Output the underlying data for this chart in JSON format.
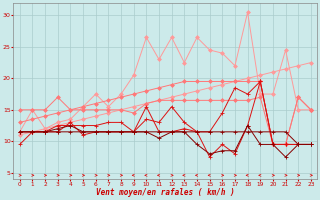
{
  "x": [
    0,
    1,
    2,
    3,
    4,
    5,
    6,
    7,
    8,
    9,
    10,
    11,
    12,
    13,
    14,
    15,
    16,
    17,
    18,
    19,
    20,
    21,
    22,
    23
  ],
  "line_upper_scatter": [
    11.5,
    15.0,
    12.0,
    13.0,
    13.5,
    15.5,
    17.5,
    15.5,
    17.5,
    20.5,
    26.5,
    23.0,
    26.5,
    22.5,
    26.5,
    24.5,
    24.0,
    22.0,
    30.5,
    17.5,
    17.5,
    24.5,
    15.0,
    15.0
  ],
  "line_upper_trend1": [
    11.0,
    11.5,
    12.0,
    12.5,
    13.0,
    13.5,
    14.0,
    14.5,
    15.0,
    15.5,
    16.0,
    16.5,
    17.0,
    17.5,
    18.0,
    18.5,
    19.0,
    19.5,
    20.0,
    20.5,
    21.0,
    21.5,
    22.0,
    22.5
  ],
  "line_upper_trend2": [
    13.0,
    13.5,
    14.0,
    14.5,
    15.0,
    15.5,
    16.0,
    16.5,
    17.0,
    17.5,
    18.0,
    18.5,
    19.0,
    19.5,
    19.5,
    19.5,
    19.5,
    19.5,
    19.5,
    19.5,
    9.5,
    9.5,
    17.0,
    15.0
  ],
  "line_mid_flat": [
    15.0,
    15.0,
    15.0,
    17.0,
    15.0,
    15.0,
    15.0,
    15.0,
    15.0,
    14.5,
    16.0,
    16.5,
    16.5,
    16.5,
    16.5,
    16.5,
    16.5,
    16.5,
    16.5,
    17.0,
    9.5,
    9.5,
    17.0,
    15.0
  ],
  "line_dark1": [
    11.5,
    11.5,
    11.5,
    12.5,
    12.5,
    12.5,
    12.5,
    13.0,
    13.0,
    11.5,
    13.5,
    13.0,
    15.5,
    13.0,
    11.5,
    11.5,
    14.5,
    18.5,
    17.5,
    19.5,
    9.5,
    9.5,
    9.5,
    9.5
  ],
  "line_dark2": [
    9.5,
    11.5,
    11.5,
    11.5,
    13.0,
    11.0,
    11.5,
    11.5,
    11.5,
    11.5,
    15.5,
    11.5,
    11.5,
    12.0,
    11.5,
    7.5,
    9.5,
    8.0,
    12.5,
    19.5,
    9.5,
    9.5,
    9.5,
    9.5
  ],
  "line_dark3": [
    11.5,
    11.5,
    11.5,
    12.0,
    12.5,
    11.5,
    11.5,
    11.5,
    11.5,
    11.5,
    11.5,
    10.5,
    11.5,
    11.5,
    9.5,
    8.0,
    8.5,
    8.5,
    12.5,
    9.5,
    9.5,
    7.5,
    9.5,
    9.5
  ],
  "line_darkest": [
    11.5,
    11.5,
    11.5,
    11.5,
    11.5,
    11.5,
    11.5,
    11.5,
    11.5,
    11.5,
    11.5,
    11.5,
    11.5,
    11.5,
    11.5,
    11.5,
    11.5,
    11.5,
    11.5,
    11.5,
    11.5,
    11.5,
    9.5,
    9.5
  ],
  "arrow_dirs": [
    1,
    1,
    1,
    1,
    1,
    1,
    1,
    1,
    1,
    -1,
    -1,
    -1,
    1,
    -1,
    -1,
    -1,
    1,
    1,
    -1,
    -1,
    1,
    1,
    1,
    1
  ],
  "bg_color": "#cceaea",
  "grid_color": "#aacccc",
  "xlabel": "Vent moyen/en rafales ( km/h )",
  "xlim": [
    -0.5,
    23.5
  ],
  "ylim": [
    4,
    32
  ],
  "yticks": [
    5,
    10,
    15,
    20,
    25,
    30
  ],
  "xticks": [
    0,
    1,
    2,
    3,
    4,
    5,
    6,
    7,
    8,
    9,
    10,
    11,
    12,
    13,
    14,
    15,
    16,
    17,
    18,
    19,
    20,
    21,
    22,
    23
  ],
  "color_light": "#ff9999",
  "color_mid": "#ff7777",
  "color_dark": "#dd1111",
  "color_darkest": "#880000"
}
